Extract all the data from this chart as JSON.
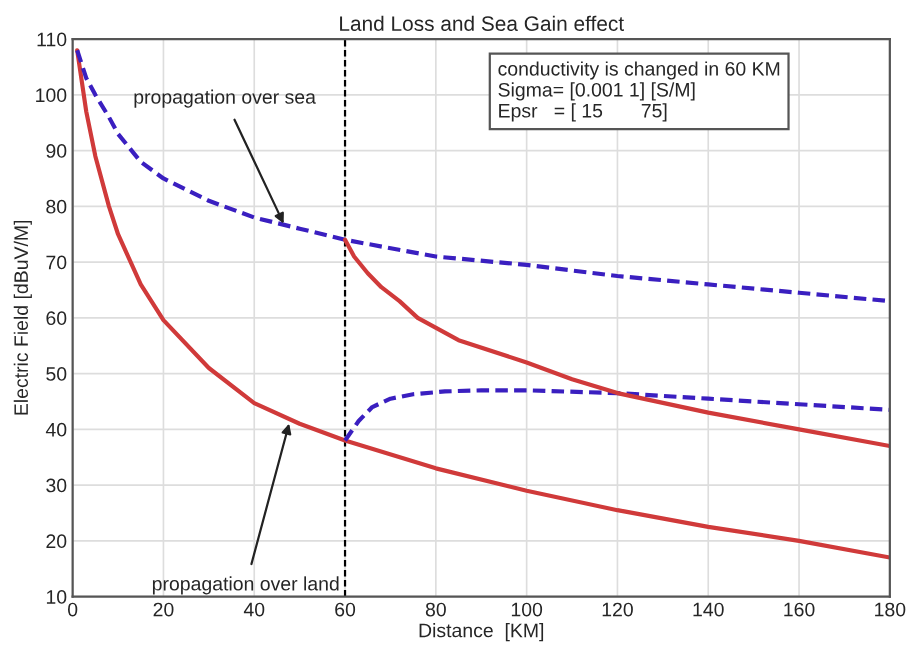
{
  "chart_data": {
    "type": "line",
    "title": "Land Loss and Sea Gain effect",
    "xlabel": "Distance  [KM]",
    "ylabel": "Electric Field [dBuV/M]",
    "xlim": [
      0,
      180
    ],
    "ylim": [
      10,
      110
    ],
    "xticks": [
      0,
      20,
      40,
      60,
      80,
      100,
      120,
      140,
      160,
      180
    ],
    "yticks": [
      10,
      20,
      30,
      40,
      50,
      60,
      70,
      80,
      90,
      100,
      110
    ],
    "grid": true,
    "marker": "none",
    "series": [
      {
        "color": "#d03a3a",
        "line_style": "solid",
        "x": [
          1,
          3,
          5,
          8,
          10,
          15,
          20,
          30,
          40,
          50,
          60,
          80,
          100,
          120,
          140,
          160,
          180
        ],
        "values": [
          108,
          97,
          89,
          80,
          75,
          66,
          59.6,
          51,
          44.7,
          41,
          38,
          33,
          29,
          25.5,
          22.5,
          20,
          17
        ]
      },
      {
        "color": "#3a1fc0",
        "line_style": "dashed",
        "x": [
          1,
          3,
          5,
          8,
          10,
          15,
          20,
          30,
          40,
          50,
          60,
          80,
          100,
          120,
          140,
          160,
          180
        ],
        "values": [
          108,
          103,
          100,
          96,
          93,
          88,
          85,
          81,
          78,
          76,
          74,
          71,
          69.5,
          67.5,
          66,
          64.5,
          63
        ]
      },
      {
        "color": "#3a1fc0",
        "line_style": "dashed",
        "x": [
          60,
          63,
          66,
          70,
          75,
          82,
          90,
          100,
          120,
          140,
          160,
          180
        ],
        "values": [
          38,
          41.5,
          44,
          45.5,
          46.3,
          46.8,
          47,
          47,
          46.5,
          45.5,
          44.5,
          43.5
        ]
      },
      {
        "color": "#d03a3a",
        "line_style": "solid",
        "x": [
          60,
          62,
          65,
          68,
          72,
          76,
          85,
          100,
          110,
          120,
          140,
          160,
          180
        ],
        "values": [
          74,
          71,
          68,
          65.5,
          63,
          60,
          56,
          52,
          49,
          46.5,
          43,
          40,
          37
        ]
      }
    ],
    "ref_lines": [
      {
        "axis": "x",
        "value": 60,
        "color": "#000000",
        "line_style": "dashed"
      }
    ],
    "annotations": [
      {
        "text": "propagation over sea",
        "x": 47,
        "y": 76
      },
      {
        "text": "propagation over land",
        "x": 48,
        "y": 42
      },
      "conductivity is changed in 60 KM\nSigma= [0.001 1] [S/M]\nEpsr   = [ 15       75]"
    ]
  }
}
